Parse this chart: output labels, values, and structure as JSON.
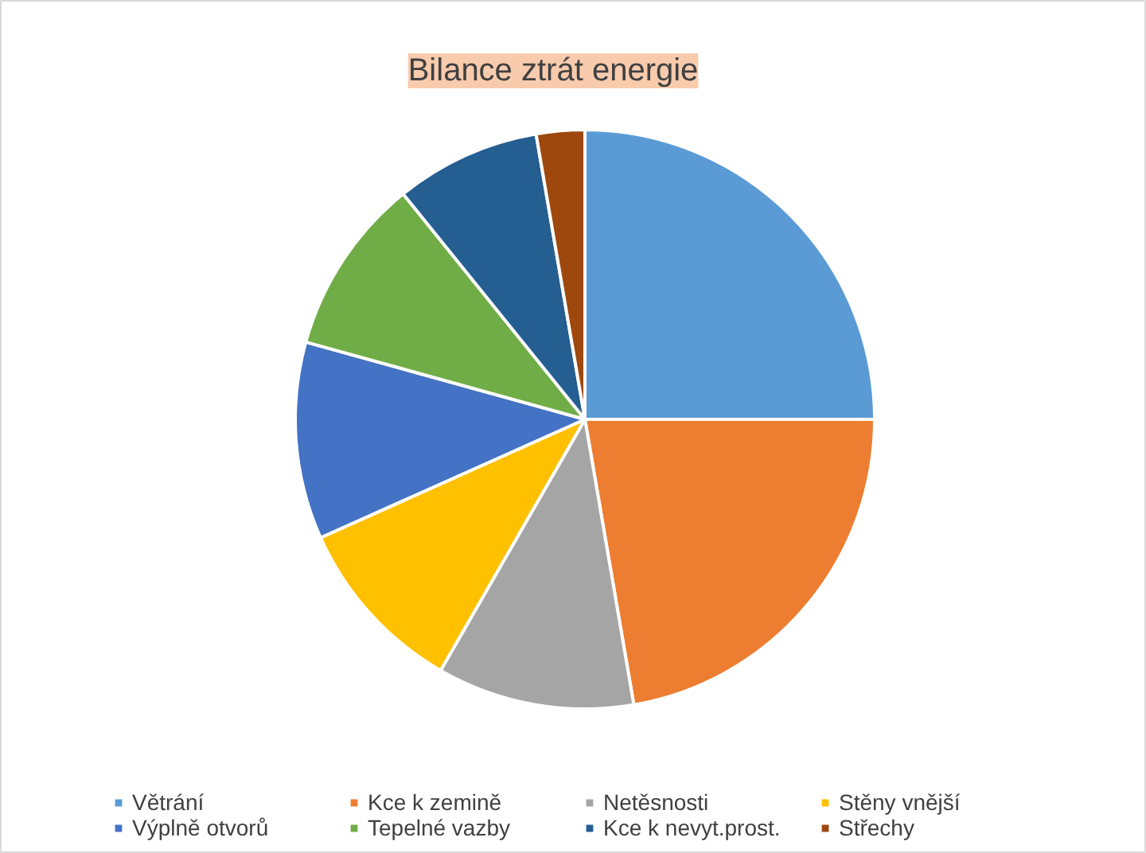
{
  "chart_data": {
    "type": "pie",
    "title": "Bilance ztrát energie",
    "categories": [
      "Větrání",
      "Kce k zemině",
      "Netěsnosti",
      "Stěny vnější",
      "Výplně otvorů",
      "Tepelné vazby",
      "Kce k nevyt.prost.",
      "Střechy"
    ],
    "values": [
      25,
      22.3,
      11,
      10,
      11,
      9.9,
      8.1,
      2.7
    ],
    "colors": [
      "#5b9bd5",
      "#ed7d31",
      "#a5a5a5",
      "#ffc000",
      "#4472c4",
      "#70ad47",
      "#255e91",
      "#9e480e"
    ],
    "legend": "bottom"
  }
}
